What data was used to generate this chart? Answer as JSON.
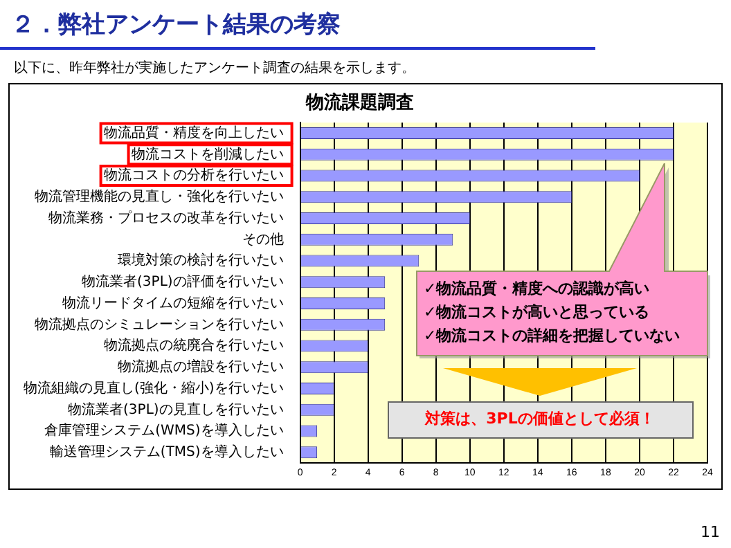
{
  "chart_data": {
    "type": "bar",
    "orientation": "horizontal",
    "title": "物流課題調査",
    "categories": [
      "物流品質・精度を向上したい",
      "物流コストを削減したい",
      "物流コストの分析を行いたい",
      "物流管理機能の見直し・強化を行いたい",
      "物流業務・プロセスの改革を行いたい",
      "その他",
      "環境対策の検討を行いたい",
      "物流業者(3PL)の評価を行いたい",
      "物流リードタイムの短縮を行いたい",
      "物流拠点のシミュレーションを行いたい",
      "物流拠点の統廃合を行いたい",
      "物流拠点の増設を行いたい",
      "物流組織の見直し(強化・縮小)を行いたい",
      "物流業者(3PL)の見直しを行いたい",
      "倉庫管理システム(WMS)を導入したい",
      "輸送管理システム(TMS)を導入したい"
    ],
    "values": [
      22,
      22,
      20,
      16,
      10,
      9,
      7,
      5,
      5,
      5,
      4,
      4,
      2,
      2,
      1,
      1
    ],
    "color": "#9999ff",
    "xlim": [
      0,
      24
    ],
    "xticks": [
      0,
      2,
      4,
      6,
      8,
      10,
      12,
      14,
      16,
      18,
      20,
      22,
      24
    ],
    "grid": "x",
    "legend": false,
    "annotations": [
      "２．弊社アンケート結果の考察",
      "以下に、昨年弊社が実施したアンケート調査の結果を示します。",
      "✓物流品質・精度への認識が高い",
      "✓物流コストが高いと思っている",
      "✓物流コストの詳細を把握していない",
      "対策は、3PLの価値として必須！",
      "11"
    ]
  }
}
